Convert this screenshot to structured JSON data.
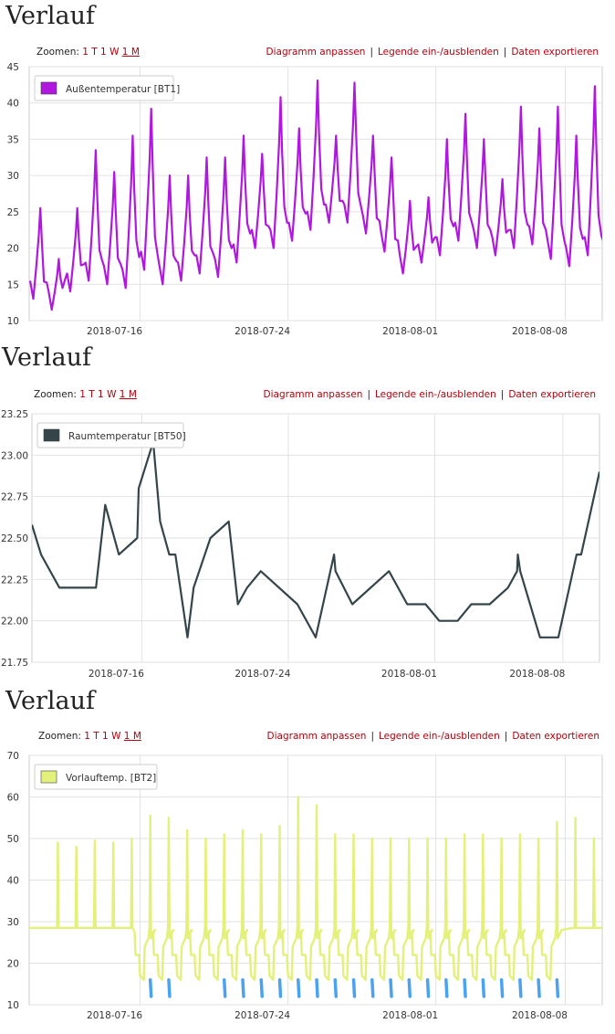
{
  "panels": [
    {
      "title": "Verlauf",
      "zoom_label": "Zoomen:",
      "zoom_options": [
        "1 T",
        "1 W",
        "1 M"
      ],
      "actions": [
        "Diagramm anpassen",
        "Legende ein-/ausblenden",
        "Daten exportieren"
      ]
    },
    {
      "title": "Verlauf",
      "zoom_label": "Zoomen:",
      "zoom_options": [
        "1 T",
        "1 W",
        "1 M"
      ],
      "actions": [
        "Diagramm anpassen",
        "Legende ein-/ausblenden",
        "Daten exportieren"
      ]
    },
    {
      "title": "Verlauf",
      "zoom_label": "Zoomen:",
      "zoom_options": [
        "1 T",
        "1 W",
        "1 M"
      ],
      "actions": [
        "Diagramm anpassen",
        "Legende ein-/ausblenden",
        "Daten exportieren"
      ]
    }
  ],
  "chart_data": [
    {
      "type": "line",
      "x_ticks": [
        "2018-07-16",
        "2018-07-24",
        "2018-08-01",
        "2018-08-08"
      ],
      "x_range": [
        "2018-07-10",
        "2018-08-10"
      ],
      "ylim": [
        10,
        45
      ],
      "y_ticks": [
        "10",
        "15",
        "20",
        "25",
        "30",
        "35",
        "40",
        "45"
      ],
      "grid": true,
      "legend": "top-left",
      "series": [
        {
          "name": "Außentemperatur [BT1]",
          "color": "#b018e0",
          "days": [
            {
              "min": 13,
              "max": 25.5
            },
            {
              "min": 11.5,
              "max": 18.5
            },
            {
              "min": 14,
              "max": 25.5
            },
            {
              "min": 15.5,
              "max": 33.5
            },
            {
              "min": 15,
              "max": 30.5
            },
            {
              "min": 14.5,
              "max": 35.5
            },
            {
              "min": 17,
              "max": 39.2
            },
            {
              "min": 15,
              "max": 30
            },
            {
              "min": 15.5,
              "max": 30
            },
            {
              "min": 16.5,
              "max": 32.5
            },
            {
              "min": 16,
              "max": 32.5
            },
            {
              "min": 18,
              "max": 35.5
            },
            {
              "min": 20,
              "max": 33
            },
            {
              "min": 20,
              "max": 40.8
            },
            {
              "min": 21,
              "max": 36.5
            },
            {
              "min": 22.5,
              "max": 43.1
            },
            {
              "min": 23.5,
              "max": 35.5
            },
            {
              "min": 23.5,
              "max": 42.8
            },
            {
              "min": 22,
              "max": 35.5
            },
            {
              "min": 19.5,
              "max": 32.5
            },
            {
              "min": 16.5,
              "max": 26.5
            },
            {
              "min": 18,
              "max": 27
            },
            {
              "min": 19,
              "max": 35
            },
            {
              "min": 21,
              "max": 38.5
            },
            {
              "min": 20,
              "max": 35
            },
            {
              "min": 19,
              "max": 29.5
            },
            {
              "min": 20,
              "max": 39.5
            },
            {
              "min": 20.5,
              "max": 36.5
            },
            {
              "min": 18.5,
              "max": 39.5
            },
            {
              "min": 17.5,
              "max": 35.5
            },
            {
              "min": 19,
              "max": 42.3
            },
            {
              "min": 18.5,
              "max": 30.5
            }
          ]
        }
      ]
    },
    {
      "type": "line",
      "x_ticks": [
        "2018-07-16",
        "2018-07-24",
        "2018-08-01",
        "2018-08-08"
      ],
      "x_range": [
        "2018-07-10",
        "2018-08-10"
      ],
      "ylim": [
        21.75,
        23.25
      ],
      "y_ticks": [
        "21.75",
        "22.00",
        "22.25",
        "22.50",
        "22.75",
        "23.00",
        "23.25"
      ],
      "grid": true,
      "legend": "top-left",
      "series": [
        {
          "name": "Raumtemperatur [BT50]",
          "color": "#34454a",
          "points": [
            [
              "2018-07-10",
              22.58
            ],
            [
              "2018-07-10 12:00",
              22.4
            ],
            [
              "2018-07-11 12:00",
              22.2
            ],
            [
              "2018-07-13 12:00",
              22.2
            ],
            [
              "2018-07-14",
              22.7
            ],
            [
              "2018-07-14 18:00",
              22.4
            ],
            [
              "2018-07-15 18:00",
              22.5
            ],
            [
              "2018-07-15 20:00",
              22.8
            ],
            [
              "2018-07-16 15:00",
              23.08
            ],
            [
              "2018-07-17",
              22.6
            ],
            [
              "2018-07-17 12:00",
              22.4
            ],
            [
              "2018-07-17 20:00",
              22.4
            ],
            [
              "2018-07-18 12:00",
              21.9
            ],
            [
              "2018-07-18 20:00",
              22.2
            ],
            [
              "2018-07-19 18:00",
              22.5
            ],
            [
              "2018-07-20 18:00",
              22.6
            ],
            [
              "2018-07-21 06:00",
              22.1
            ],
            [
              "2018-07-21 18:00",
              22.2
            ],
            [
              "2018-07-22 12:00",
              22.3
            ],
            [
              "2018-07-24 12:00",
              22.1
            ],
            [
              "2018-07-25 12:00",
              21.9
            ],
            [
              "2018-07-26 12:00",
              22.4
            ],
            [
              "2018-07-26 14:00",
              22.3
            ],
            [
              "2018-07-27 12:00",
              22.1
            ],
            [
              "2018-07-29 12:00",
              22.3
            ],
            [
              "2018-07-30 12:00",
              22.1
            ],
            [
              "2018-07-31 12:00",
              22.1
            ],
            [
              "2018-08-01 06:00",
              22.0
            ],
            [
              "2018-08-02 06:00",
              22.0
            ],
            [
              "2018-08-03",
              22.1
            ],
            [
              "2018-08-04",
              22.1
            ],
            [
              "2018-08-05",
              22.2
            ],
            [
              "2018-08-05 12:00",
              22.3
            ],
            [
              "2018-08-05 13:00",
              22.4
            ],
            [
              "2018-08-05 16:00",
              22.3
            ],
            [
              "2018-08-06 18:00",
              21.9
            ],
            [
              "2018-08-07 18:00",
              21.9
            ],
            [
              "2018-08-08 18:00",
              22.4
            ],
            [
              "2018-08-09",
              22.4
            ],
            [
              "2018-08-10",
              22.9
            ]
          ]
        }
      ]
    },
    {
      "type": "line",
      "x_ticks": [
        "2018-07-16",
        "2018-07-24",
        "2018-08-01",
        "2018-08-08"
      ],
      "x_range": [
        "2018-07-10",
        "2018-08-10"
      ],
      "ylim": [
        10,
        70
      ],
      "y_ticks": [
        "10",
        "20",
        "30",
        "40",
        "50",
        "60",
        "70"
      ],
      "grid": true,
      "legend": "top-left",
      "series": [
        {
          "name": "Vorlauftemp. [BT2]",
          "color": "#e3f07a",
          "baseline": 28.5,
          "spike_days": [
            {
              "day": 1,
              "peak": 49
            },
            {
              "day": 2,
              "peak": 48
            },
            {
              "day": 3,
              "peak": 49.5
            },
            {
              "day": 4,
              "peak": 49
            },
            {
              "day": 5,
              "peak": 50
            },
            {
              "day": 6,
              "peak": 55.5
            },
            {
              "day": 7,
              "peak": 55
            },
            {
              "day": 8,
              "peak": 52
            },
            {
              "day": 9,
              "peak": 50
            },
            {
              "day": 10,
              "peak": 51
            },
            {
              "day": 11,
              "peak": 52
            },
            {
              "day": 12,
              "peak": 51
            },
            {
              "day": 13,
              "peak": 53
            },
            {
              "day": 14,
              "peak": 60
            },
            {
              "day": 15,
              "peak": 58
            },
            {
              "day": 16,
              "peak": 51
            },
            {
              "day": 17,
              "peak": 51
            },
            {
              "day": 18,
              "peak": 50
            },
            {
              "day": 19,
              "peak": 50
            },
            {
              "day": 20,
              "peak": 50
            },
            {
              "day": 21,
              "peak": 50
            },
            {
              "day": 22,
              "peak": 50
            },
            {
              "day": 23,
              "peak": 51
            },
            {
              "day": 24,
              "peak": 51
            },
            {
              "day": 25,
              "peak": 50
            },
            {
              "day": 26,
              "peak": 51
            },
            {
              "day": 27,
              "peak": 50
            },
            {
              "day": 28,
              "peak": 54
            },
            {
              "day": 29,
              "peak": 55
            },
            {
              "day": 30,
              "peak": 50
            }
          ],
          "low_period": [
            "2018-07-16",
            "2018-08-08"
          ],
          "low_min": 16
        },
        {
          "color": "#4aa3ef",
          "dashes": [
            "2018-07-16",
            "2018-07-17",
            "2018-07-20",
            "2018-07-21",
            "2018-07-22",
            "2018-07-23",
            "2018-07-24",
            "2018-07-25",
            "2018-07-26",
            "2018-07-27",
            "2018-07-28",
            "2018-07-29",
            "2018-07-30",
            "2018-07-31",
            "2018-08-01",
            "2018-08-02",
            "2018-08-03",
            "2018-08-04",
            "2018-08-05",
            "2018-08-06",
            "2018-08-07"
          ],
          "range": [
            12,
            16
          ]
        }
      ]
    }
  ]
}
